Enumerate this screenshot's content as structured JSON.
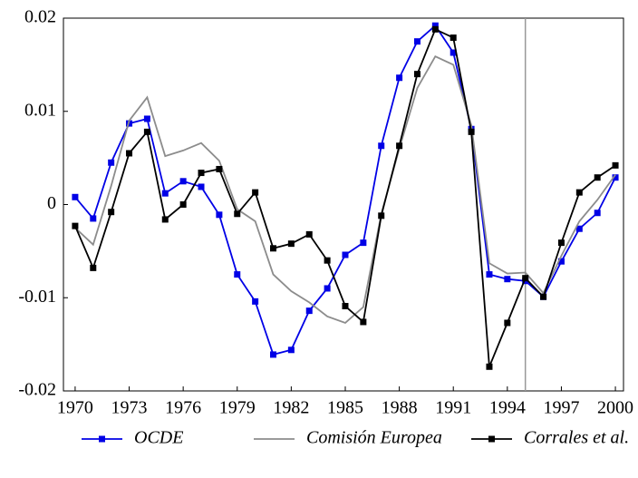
{
  "chart_data": {
    "type": "line",
    "x": [
      1970,
      1971,
      1972,
      1973,
      1974,
      1975,
      1976,
      1977,
      1978,
      1979,
      1980,
      1981,
      1982,
      1983,
      1984,
      1985,
      1986,
      1987,
      1988,
      1989,
      1990,
      1991,
      1992,
      1993,
      1994,
      1995,
      1996,
      1997,
      1998,
      1999,
      2000
    ],
    "series": [
      {
        "name": "OCDE",
        "color": "#0000e6",
        "marker": "square",
        "values": [
          0.0008,
          -0.0015,
          0.0045,
          0.0087,
          0.0092,
          0.0012,
          0.0025,
          0.0019,
          -0.0011,
          -0.0075,
          -0.0104,
          -0.0161,
          -0.0156,
          -0.0114,
          -0.009,
          -0.0054,
          -0.0041,
          0.0063,
          0.0136,
          0.0175,
          0.0192,
          0.0163,
          0.0081,
          -0.0075,
          -0.008,
          -0.0082,
          -0.0099,
          -0.0061,
          -0.0026,
          -0.0009,
          0.0029
        ]
      },
      {
        "name": "Comisión Europea",
        "color": "#8c8c8c",
        "values": [
          -0.0025,
          -0.0043,
          0.002,
          0.009,
          0.0115,
          0.0052,
          0.0058,
          0.0066,
          0.0047,
          -0.0005,
          -0.0018,
          -0.0075,
          -0.0093,
          -0.0105,
          -0.012,
          -0.0127,
          -0.011,
          -0.001,
          0.006,
          0.0125,
          0.0159,
          0.015,
          0.0085,
          -0.0063,
          -0.0074,
          -0.0073,
          -0.0095,
          -0.0055,
          -0.0018,
          0.0005,
          0.0032
        ]
      },
      {
        "name": "Corrales et al.",
        "color": "#000000",
        "marker": "square",
        "values": [
          -0.0023,
          -0.0068,
          -0.0008,
          0.0055,
          0.0078,
          -0.0016,
          0.0,
          0.0034,
          0.0038,
          -0.001,
          0.0013,
          -0.0047,
          -0.0042,
          -0.0032,
          -0.006,
          -0.0109,
          -0.0126,
          -0.0012,
          0.0063,
          0.014,
          0.0188,
          0.0179,
          0.0078,
          -0.0174,
          -0.0127,
          -0.0079,
          -0.0099,
          -0.0041,
          0.0013,
          0.0029,
          0.0042
        ]
      }
    ],
    "xlim": [
      1969.35,
      2000.45
    ],
    "xticks": [
      1970,
      1973,
      1976,
      1979,
      1982,
      1985,
      1988,
      1991,
      1994,
      1997,
      2000
    ],
    "ylim": [
      -0.02,
      0.02
    ],
    "yticks": [
      -0.02,
      -0.01,
      0,
      0.01,
      0.02
    ],
    "vline": 1995,
    "vline_color": "#999999",
    "legend": "bottom"
  }
}
